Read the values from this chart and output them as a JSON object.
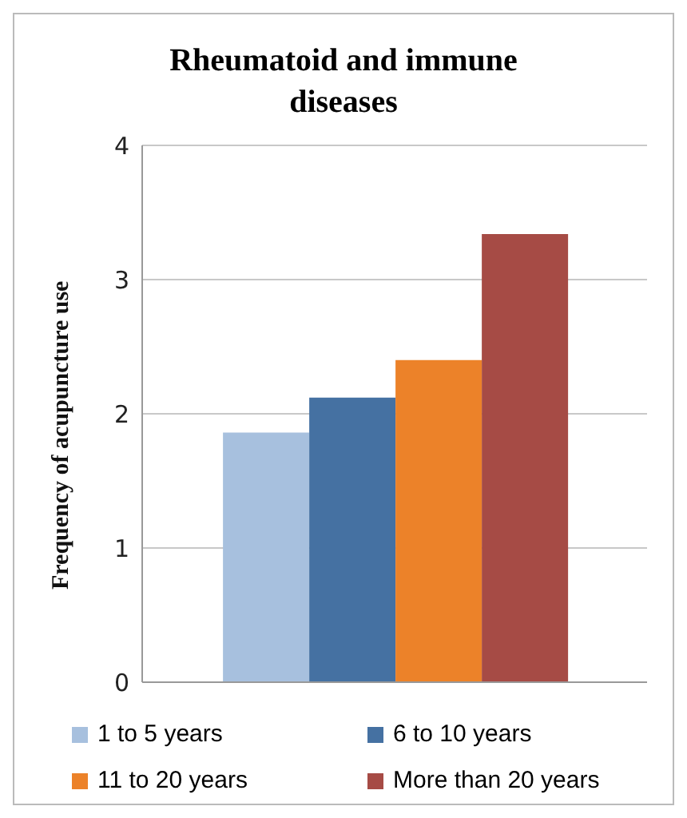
{
  "chart_data": {
    "type": "bar",
    "title": "Rheumatoid and immune diseases",
    "ylabel": "Frequency of acupuncture use",
    "categories": [
      null
    ],
    "series": [
      {
        "name": "1 to 5 years",
        "color": "#a7c0de",
        "values": [
          1.86
        ]
      },
      {
        "name": "6 to 10 years",
        "color": "#4571a2",
        "values": [
          2.12
        ]
      },
      {
        "name": "11 to 20 years",
        "color": "#ec8229",
        "values": [
          2.4
        ]
      },
      {
        "name": "More than 20 years",
        "color": "#a64b45",
        "values": [
          3.34
        ]
      }
    ],
    "ylim": [
      0,
      4
    ],
    "yticks": [
      0,
      1,
      2,
      3,
      4
    ],
    "grid": "y",
    "legend": "bottom"
  }
}
